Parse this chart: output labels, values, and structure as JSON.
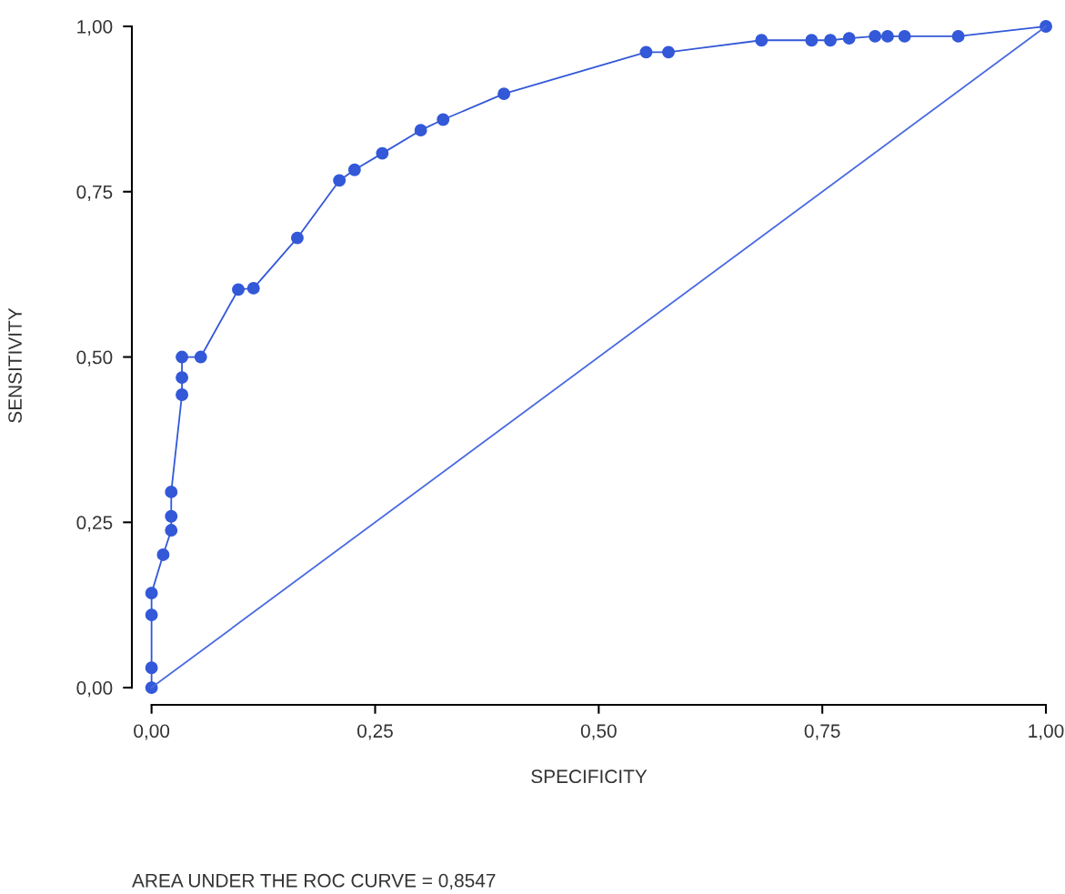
{
  "chart_data": {
    "type": "line",
    "xlabel": "SPECIFICITY",
    "ylabel": "SENSITIVITY",
    "annotations": [
      "AREA UNDER THE ROC CURVE = 0,8547"
    ],
    "xlim": [
      -0.022,
      1
    ],
    "ylim": [
      -0.026,
      1
    ],
    "xticks": [
      {
        "value": 0,
        "label": "0,00"
      },
      {
        "value": 0.25,
        "label": "0,25"
      },
      {
        "value": 0.5,
        "label": "0,50"
      },
      {
        "value": 0.75,
        "label": "0,75"
      },
      {
        "value": 1,
        "label": "1,00"
      }
    ],
    "yticks": [
      {
        "value": 0,
        "label": "0,00"
      },
      {
        "value": 0.25,
        "label": "0,25"
      },
      {
        "value": 0.5,
        "label": "0,50"
      },
      {
        "value": 0.75,
        "label": "0,75"
      },
      {
        "value": 1,
        "label": "1,00"
      }
    ],
    "grid": false,
    "series": [
      {
        "marker": "circle",
        "color": "#3358d8",
        "x": [
          0,
          0,
          0,
          0,
          0.013,
          0.022,
          0.022,
          0.022,
          0.034,
          0.034,
          0.034,
          0.055,
          0.097,
          0.114,
          0.163,
          0.21,
          0.227,
          0.258,
          0.301,
          0.326,
          0.394,
          0.553,
          0.578,
          0.682,
          0.738,
          0.759,
          0.78,
          0.809,
          0.823,
          0.842,
          0.902,
          1.0
        ],
        "values": [
          0,
          0.03,
          0.11,
          0.143,
          0.201,
          0.238,
          0.259,
          0.296,
          0.443,
          0.469,
          0.5,
          0.5,
          0.602,
          0.604,
          0.68,
          0.767,
          0.783,
          0.808,
          0.843,
          0.859,
          0.898,
          0.961,
          0.961,
          0.979,
          0.979,
          0.979,
          0.982,
          0.985,
          0.985,
          0.985,
          0.985,
          1.0
        ]
      },
      {
        "marker": "none",
        "color": "#4a6ae0",
        "x": [
          0,
          1
        ],
        "values": [
          0,
          1
        ]
      }
    ]
  }
}
